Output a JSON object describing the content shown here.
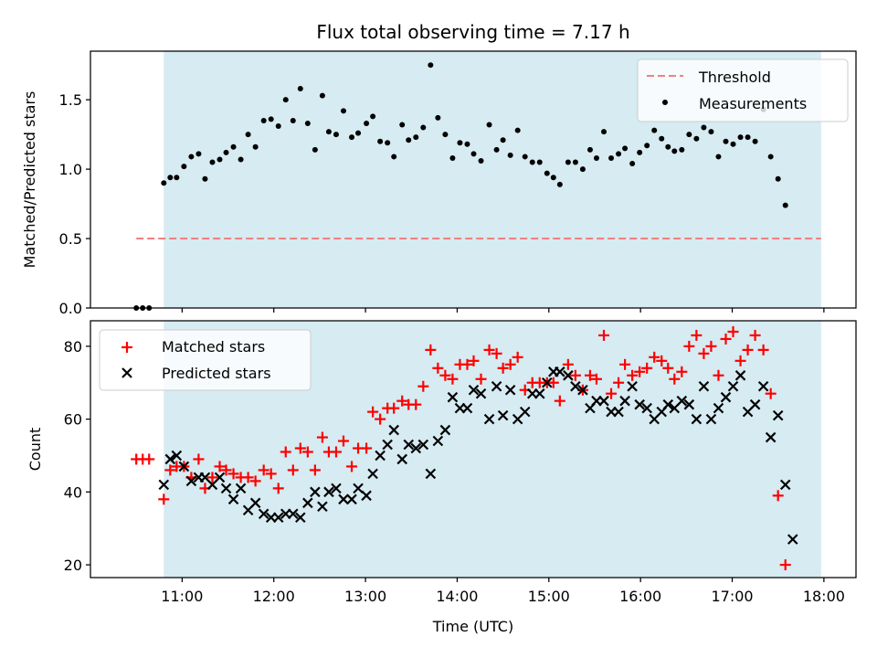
{
  "chart_data": {
    "title": "Flux total observing time = 7.17 h",
    "highlight": {
      "start_hour": 10.8,
      "end_hour": 17.97,
      "color": "#add8e6"
    },
    "x_axis": {
      "label": "Time (UTC)",
      "lim": [
        10.0,
        18.35
      ],
      "ticks": [
        {
          "value": 11,
          "label": "11:00"
        },
        {
          "value": 12,
          "label": "12:00"
        },
        {
          "value": 13,
          "label": "13:00"
        },
        {
          "value": 14,
          "label": "14:00"
        },
        {
          "value": 15,
          "label": "15:00"
        },
        {
          "value": 16,
          "label": "16:00"
        },
        {
          "value": 17,
          "label": "17:00"
        },
        {
          "value": 18,
          "label": "18:00"
        }
      ]
    },
    "top_panel": {
      "type": "scatter",
      "ylabel": "Matched/Predicted stars",
      "ylim": [
        0,
        1.85
      ],
      "yticks": [
        {
          "value": 0.0,
          "label": "0.0"
        },
        {
          "value": 0.5,
          "label": "0.5"
        },
        {
          "value": 1.0,
          "label": "1.0"
        },
        {
          "value": 1.5,
          "label": "1.5"
        }
      ],
      "legend": [
        {
          "label": "Threshold",
          "kind": "dashed-line",
          "color": "#f08080"
        },
        {
          "label": "Measurements",
          "kind": "dot",
          "color": "#000000"
        }
      ],
      "threshold": {
        "value": 0.5,
        "x_start": 10.5,
        "x_end": 17.97,
        "color": "#f08080"
      },
      "measurements": [
        [
          10.5,
          0.0
        ],
        [
          10.57,
          0.0
        ],
        [
          10.64,
          0.0
        ],
        [
          10.8,
          0.9
        ],
        [
          10.87,
          0.94
        ],
        [
          10.94,
          0.94
        ],
        [
          11.02,
          1.02
        ],
        [
          11.1,
          1.09
        ],
        [
          11.18,
          1.11
        ],
        [
          11.25,
          0.93
        ],
        [
          11.33,
          1.05
        ],
        [
          11.41,
          1.07
        ],
        [
          11.48,
          1.12
        ],
        [
          11.56,
          1.16
        ],
        [
          11.64,
          1.07
        ],
        [
          11.72,
          1.25
        ],
        [
          11.8,
          1.16
        ],
        [
          11.89,
          1.35
        ],
        [
          11.97,
          1.36
        ],
        [
          12.05,
          1.31
        ],
        [
          12.13,
          1.5
        ],
        [
          12.21,
          1.35
        ],
        [
          12.29,
          1.58
        ],
        [
          12.37,
          1.33
        ],
        [
          12.45,
          1.14
        ],
        [
          12.53,
          1.53
        ],
        [
          12.6,
          1.27
        ],
        [
          12.68,
          1.25
        ],
        [
          12.76,
          1.42
        ],
        [
          12.85,
          1.23
        ],
        [
          12.92,
          1.26
        ],
        [
          13.01,
          1.33
        ],
        [
          13.08,
          1.38
        ],
        [
          13.16,
          1.2
        ],
        [
          13.24,
          1.19
        ],
        [
          13.31,
          1.09
        ],
        [
          13.4,
          1.32
        ],
        [
          13.47,
          1.21
        ],
        [
          13.55,
          1.23
        ],
        [
          13.63,
          1.3
        ],
        [
          13.71,
          1.75
        ],
        [
          13.79,
          1.37
        ],
        [
          13.87,
          1.25
        ],
        [
          13.95,
          1.08
        ],
        [
          14.03,
          1.19
        ],
        [
          14.11,
          1.18
        ],
        [
          14.18,
          1.11
        ],
        [
          14.26,
          1.06
        ],
        [
          14.35,
          1.32
        ],
        [
          14.43,
          1.14
        ],
        [
          14.5,
          1.21
        ],
        [
          14.58,
          1.1
        ],
        [
          14.66,
          1.28
        ],
        [
          14.74,
          1.09
        ],
        [
          14.82,
          1.05
        ],
        [
          14.9,
          1.05
        ],
        [
          14.98,
          0.97
        ],
        [
          15.05,
          0.94
        ],
        [
          15.12,
          0.89
        ],
        [
          15.21,
          1.05
        ],
        [
          15.29,
          1.05
        ],
        [
          15.37,
          1.0
        ],
        [
          15.45,
          1.14
        ],
        [
          15.52,
          1.08
        ],
        [
          15.6,
          1.27
        ],
        [
          15.68,
          1.08
        ],
        [
          15.76,
          1.11
        ],
        [
          15.83,
          1.15
        ],
        [
          15.91,
          1.04
        ],
        [
          15.99,
          1.12
        ],
        [
          16.07,
          1.17
        ],
        [
          16.15,
          1.28
        ],
        [
          16.23,
          1.22
        ],
        [
          16.3,
          1.16
        ],
        [
          16.37,
          1.13
        ],
        [
          16.45,
          1.14
        ],
        [
          16.53,
          1.25
        ],
        [
          16.61,
          1.22
        ],
        [
          16.69,
          1.3
        ],
        [
          16.77,
          1.27
        ],
        [
          16.85,
          1.09
        ],
        [
          16.93,
          1.2
        ],
        [
          17.01,
          1.18
        ],
        [
          17.09,
          1.23
        ],
        [
          17.17,
          1.23
        ],
        [
          17.25,
          1.2
        ],
        [
          17.34,
          1.43
        ],
        [
          17.42,
          1.09
        ],
        [
          17.5,
          0.93
        ],
        [
          17.58,
          0.74
        ]
      ]
    },
    "bottom_panel": {
      "type": "scatter",
      "ylabel": "Count",
      "ylim": [
        16.5,
        87
      ],
      "yticks": [
        {
          "value": 20,
          "label": "20"
        },
        {
          "value": 40,
          "label": "40"
        },
        {
          "value": 60,
          "label": "60"
        },
        {
          "value": 80,
          "label": "80"
        }
      ],
      "legend": [
        {
          "label": "Matched stars",
          "kind": "plus",
          "color": "#ff0000"
        },
        {
          "label": "Predicted stars",
          "kind": "cross",
          "color": "#000000"
        }
      ],
      "matched": [
        [
          10.5,
          49
        ],
        [
          10.57,
          49
        ],
        [
          10.64,
          49
        ],
        [
          10.8,
          38
        ],
        [
          10.87,
          46
        ],
        [
          10.94,
          47
        ],
        [
          11.02,
          47
        ],
        [
          11.1,
          44
        ],
        [
          11.18,
          49
        ],
        [
          11.25,
          41
        ],
        [
          11.33,
          44
        ],
        [
          11.41,
          47
        ],
        [
          11.48,
          46
        ],
        [
          11.56,
          45
        ],
        [
          11.64,
          44
        ],
        [
          11.72,
          44
        ],
        [
          11.8,
          43
        ],
        [
          11.89,
          46
        ],
        [
          11.97,
          45
        ],
        [
          12.05,
          41
        ],
        [
          12.13,
          51
        ],
        [
          12.21,
          46
        ],
        [
          12.29,
          52
        ],
        [
          12.37,
          51
        ],
        [
          12.45,
          46
        ],
        [
          12.53,
          55
        ],
        [
          12.6,
          51
        ],
        [
          12.68,
          51
        ],
        [
          12.76,
          54
        ],
        [
          12.85,
          47
        ],
        [
          12.92,
          52
        ],
        [
          13.01,
          52
        ],
        [
          13.08,
          62
        ],
        [
          13.16,
          60
        ],
        [
          13.24,
          63
        ],
        [
          13.31,
          63
        ],
        [
          13.4,
          65
        ],
        [
          13.47,
          64
        ],
        [
          13.55,
          64
        ],
        [
          13.63,
          69
        ],
        [
          13.71,
          79
        ],
        [
          13.79,
          74
        ],
        [
          13.87,
          72
        ],
        [
          13.95,
          71
        ],
        [
          14.03,
          75
        ],
        [
          14.11,
          75
        ],
        [
          14.18,
          76
        ],
        [
          14.26,
          71
        ],
        [
          14.35,
          79
        ],
        [
          14.43,
          78
        ],
        [
          14.5,
          74
        ],
        [
          14.58,
          75
        ],
        [
          14.66,
          77
        ],
        [
          14.74,
          68
        ],
        [
          14.82,
          70
        ],
        [
          14.9,
          70
        ],
        [
          14.98,
          70
        ],
        [
          15.05,
          70
        ],
        [
          15.12,
          65
        ],
        [
          15.21,
          75
        ],
        [
          15.29,
          72
        ],
        [
          15.37,
          68
        ],
        [
          15.45,
          72
        ],
        [
          15.52,
          71
        ],
        [
          15.6,
          83
        ],
        [
          15.68,
          67
        ],
        [
          15.76,
          70
        ],
        [
          15.83,
          75
        ],
        [
          15.91,
          72
        ],
        [
          15.99,
          73
        ],
        [
          16.07,
          74
        ],
        [
          16.15,
          77
        ],
        [
          16.23,
          76
        ],
        [
          16.3,
          74
        ],
        [
          16.37,
          71
        ],
        [
          16.45,
          73
        ],
        [
          16.53,
          80
        ],
        [
          16.61,
          83
        ],
        [
          16.69,
          78
        ],
        [
          16.77,
          80
        ],
        [
          16.85,
          72
        ],
        [
          16.93,
          82
        ],
        [
          17.01,
          84
        ],
        [
          17.09,
          76
        ],
        [
          17.17,
          79
        ],
        [
          17.25,
          83
        ],
        [
          17.34,
          79
        ],
        [
          17.42,
          67
        ],
        [
          17.5,
          39
        ],
        [
          17.58,
          20
        ]
      ],
      "predicted": [
        [
          10.8,
          42
        ],
        [
          10.87,
          49
        ],
        [
          10.94,
          50
        ],
        [
          11.02,
          47
        ],
        [
          11.1,
          43
        ],
        [
          11.18,
          44
        ],
        [
          11.25,
          44
        ],
        [
          11.33,
          42
        ],
        [
          11.41,
          44
        ],
        [
          11.48,
          41
        ],
        [
          11.56,
          38
        ],
        [
          11.64,
          41
        ],
        [
          11.72,
          35
        ],
        [
          11.8,
          37
        ],
        [
          11.89,
          34
        ],
        [
          11.97,
          33
        ],
        [
          12.05,
          33
        ],
        [
          12.13,
          34
        ],
        [
          12.21,
          34
        ],
        [
          12.29,
          33
        ],
        [
          12.37,
          37
        ],
        [
          12.45,
          40
        ],
        [
          12.53,
          36
        ],
        [
          12.6,
          40
        ],
        [
          12.68,
          41
        ],
        [
          12.76,
          38
        ],
        [
          12.85,
          38
        ],
        [
          12.92,
          41
        ],
        [
          13.01,
          39
        ],
        [
          13.08,
          45
        ],
        [
          13.16,
          50
        ],
        [
          13.24,
          53
        ],
        [
          13.31,
          57
        ],
        [
          13.4,
          49
        ],
        [
          13.47,
          53
        ],
        [
          13.55,
          52
        ],
        [
          13.63,
          53
        ],
        [
          13.71,
          45
        ],
        [
          13.79,
          54
        ],
        [
          13.87,
          57
        ],
        [
          13.95,
          66
        ],
        [
          14.03,
          63
        ],
        [
          14.11,
          63
        ],
        [
          14.18,
          68
        ],
        [
          14.26,
          67
        ],
        [
          14.35,
          60
        ],
        [
          14.43,
          69
        ],
        [
          14.5,
          61
        ],
        [
          14.58,
          68
        ],
        [
          14.66,
          60
        ],
        [
          14.74,
          62
        ],
        [
          14.82,
          67
        ],
        [
          14.9,
          67
        ],
        [
          14.98,
          70
        ],
        [
          15.05,
          73
        ],
        [
          15.12,
          73
        ],
        [
          15.21,
          72
        ],
        [
          15.29,
          69
        ],
        [
          15.37,
          68
        ],
        [
          15.45,
          63
        ],
        [
          15.52,
          65
        ],
        [
          15.6,
          65
        ],
        [
          15.68,
          62
        ],
        [
          15.76,
          62
        ],
        [
          15.83,
          65
        ],
        [
          15.91,
          69
        ],
        [
          15.99,
          64
        ],
        [
          16.07,
          63
        ],
        [
          16.15,
          60
        ],
        [
          16.23,
          62
        ],
        [
          16.3,
          64
        ],
        [
          16.37,
          63
        ],
        [
          16.45,
          65
        ],
        [
          16.53,
          64
        ],
        [
          16.61,
          60
        ],
        [
          16.69,
          69
        ],
        [
          16.77,
          60
        ],
        [
          16.85,
          63
        ],
        [
          16.93,
          66
        ],
        [
          17.01,
          69
        ],
        [
          17.09,
          72
        ],
        [
          17.17,
          62
        ],
        [
          17.25,
          64
        ],
        [
          17.34,
          69
        ],
        [
          17.42,
          55
        ],
        [
          17.5,
          61
        ],
        [
          17.58,
          42
        ],
        [
          17.66,
          27
        ]
      ]
    }
  }
}
